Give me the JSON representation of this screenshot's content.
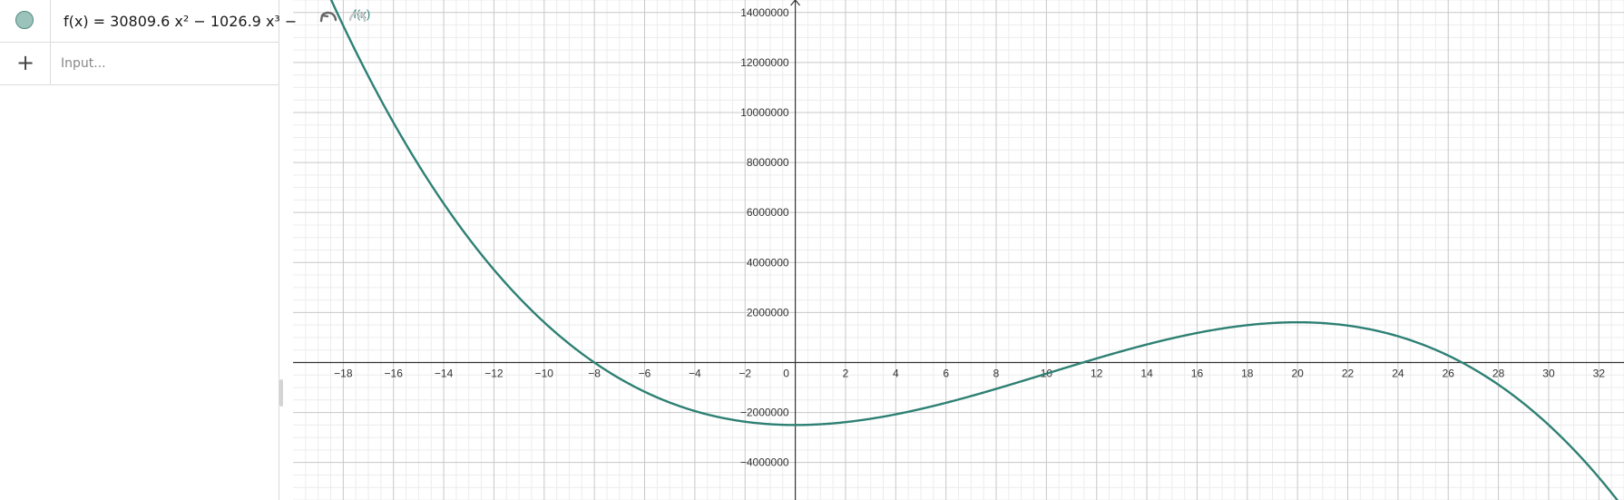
{
  "algebra_view": {
    "expression": "f(x)  =  30809.6 x² − 1026.9 x³ −",
    "input_placeholder": "Input..."
  },
  "colors": {
    "curve": "#2e8074",
    "marble_fill": "#9cc3bb",
    "axis": "#333333",
    "major_grid": "#c8c8c8",
    "minor_grid": "#ececec"
  },
  "icons": {
    "undo": "undo-icon",
    "redo": "redo-icon",
    "add": "plus-icon"
  },
  "chart_data": {
    "type": "line",
    "title": "",
    "xlabel": "",
    "ylabel": "",
    "xlim": [
      -20,
      33
    ],
    "ylim": [
      -5500000,
      14500000
    ],
    "x_ticks": [
      -18,
      -16,
      -14,
      -12,
      -10,
      -8,
      -6,
      -4,
      -2,
      0,
      2,
      4,
      6,
      8,
      10,
      12,
      14,
      16,
      18,
      20,
      22,
      24,
      26,
      28,
      30,
      32
    ],
    "y_ticks": [
      -4000000,
      -2000000,
      2000000,
      4000000,
      6000000,
      8000000,
      10000000,
      12000000,
      14000000
    ],
    "grid": true,
    "series": [
      {
        "label": "f(x)",
        "coefficients": {
          "a3": -1026.9,
          "a2": 30809.6,
          "a1": 0,
          "a0": -2500000
        },
        "x_range": [
          -19,
          33
        ]
      }
    ]
  }
}
